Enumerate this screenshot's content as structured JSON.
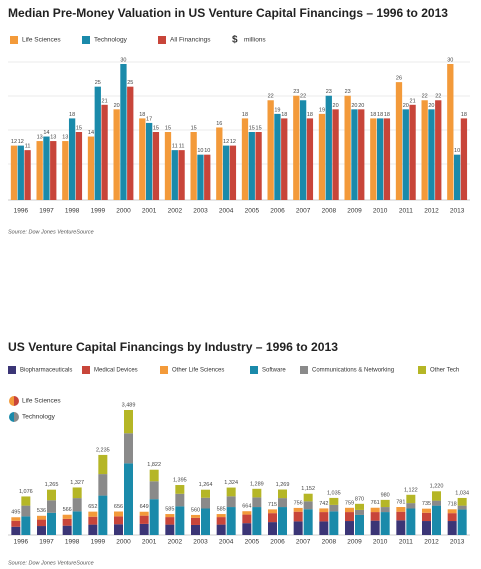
{
  "chart_data": [
    {
      "type": "grouped_bar",
      "title": "Median Pre-Money Valuation in US Venture Capital Financings – 1996 to 2013",
      "unit_symbol": "$",
      "unit_label": "millions",
      "categories": [
        "1996",
        "1997",
        "1998",
        "1999",
        "2000",
        "2001",
        "2002",
        "2003",
        "2004",
        "2005",
        "2006",
        "2007",
        "2008",
        "2009",
        "2010",
        "2011",
        "2012",
        "2013"
      ],
      "series": [
        {
          "name": "Life Sciences",
          "color": "#f39a3a",
          "values": [
            12,
            13,
            13,
            14,
            20,
            18,
            15,
            15,
            16,
            18,
            22,
            23,
            19,
            23,
            18,
            26,
            22,
            30
          ]
        },
        {
          "name": "Technology",
          "color": "#1a8aaa",
          "values": [
            12,
            14,
            18,
            25,
            30,
            17,
            11,
            10,
            12,
            15,
            19,
            22,
            23,
            20,
            18,
            20,
            20,
            10
          ]
        },
        {
          "name": "All Financings",
          "color": "#c8453a",
          "values": [
            11,
            13,
            15,
            21,
            25,
            15,
            11,
            10,
            12,
            15,
            18,
            18,
            20,
            20,
            18,
            21,
            22,
            18
          ]
        }
      ],
      "grid": true,
      "source": "Source: Dow Jones VentureSource"
    },
    {
      "type": "stacked_bar",
      "title": "US Venture Capital Financings by Industry – 1996 to 2013",
      "categories": [
        "1996",
        "1997",
        "1998",
        "1999",
        "2000",
        "2001",
        "2002",
        "2003",
        "2004",
        "2005",
        "2006",
        "2007",
        "2008",
        "2009",
        "2010",
        "2011",
        "2012",
        "2013"
      ],
      "series": [
        {
          "name": "Biopharmaceuticals",
          "color": "#3b3576",
          "stack": 0,
          "values": [
            230,
            250,
            260,
            290,
            300,
            310,
            290,
            280,
            290,
            330,
            360,
            380,
            380,
            390,
            400,
            410,
            390,
            390
          ]
        },
        {
          "name": "Medical Devices",
          "color": "#c8453a",
          "stack": 0,
          "values": [
            165,
            180,
            190,
            220,
            220,
            230,
            210,
            200,
            210,
            240,
            250,
            270,
            260,
            250,
            240,
            240,
            230,
            220
          ]
        },
        {
          "name": "Other Life Sciences",
          "color": "#f39a3a",
          "stack": 0,
          "values": [
            100,
            106,
            116,
            142,
            136,
            109,
            85,
            80,
            85,
            94,
            105,
            106,
            102,
            119,
            121,
            131,
            115,
            108
          ]
        },
        {
          "name": "Software",
          "color": "#1a8aaa",
          "stack": 1,
          "values": [
            520,
            620,
            660,
            1100,
            2000,
            1000,
            800,
            740,
            780,
            780,
            780,
            720,
            660,
            560,
            640,
            740,
            820,
            710
          ]
        },
        {
          "name": "Communications & Networking",
          "color": "#8a8a8a",
          "stack": 1,
          "values": [
            300,
            350,
            370,
            600,
            840,
            500,
            350,
            300,
            300,
            270,
            250,
            220,
            180,
            140,
            140,
            150,
            140,
            110
          ]
        },
        {
          "name": "Other Tech",
          "color": "#b5b626",
          "stack": 1,
          "values": [
            256,
            295,
            297,
            535,
            649,
            322,
            245,
            224,
            244,
            239,
            239,
            212,
            195,
            170,
            200,
            232,
            260,
            214
          ]
        }
      ],
      "stacks": [
        {
          "name": "Life Sciences",
          "values": [
            495,
            536,
            566,
            652,
            656,
            649,
            585,
            560,
            585,
            664,
            715,
            756,
            742,
            759,
            761,
            781,
            735,
            718
          ]
        },
        {
          "name": "Technology",
          "values": [
            1076,
            1265,
            1327,
            2235,
            3489,
            1822,
            1395,
            1264,
            1324,
            1289,
            1269,
            1152,
            1035,
            870,
            980,
            1122,
            1220,
            1034
          ],
          "value_labels": [
            "1,076",
            "1,265",
            "1,327",
            "2,235",
            "3,489",
            "1,822",
            "1,395",
            "1,264",
            "1,324",
            "1,289",
            "1,269",
            "1,152",
            "1,035",
            "870",
            "980",
            "1,122",
            "1,220",
            "1,034"
          ]
        }
      ],
      "source": "Source: Dow Jones VentureSource"
    }
  ]
}
